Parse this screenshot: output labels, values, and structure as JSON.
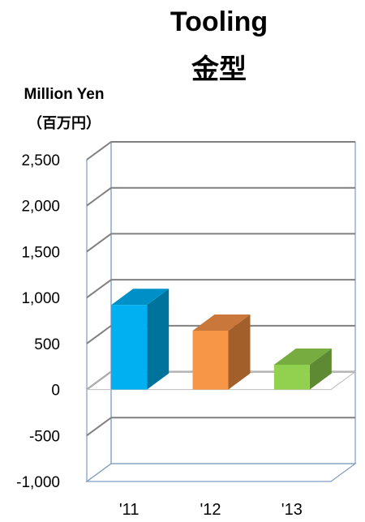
{
  "chart_data": {
    "type": "bar",
    "title": "Tooling",
    "subtitle": "金型",
    "ylabel": "Million Yen",
    "ylabel_sub": "（百万円）",
    "categories": [
      "'11",
      "'12",
      "'13"
    ],
    "values": [
      920,
      640,
      270
    ],
    "ylim": [
      -1000,
      2500
    ],
    "yticks": [
      -1000,
      -500,
      0,
      500,
      1000,
      1500,
      2000,
      2500
    ],
    "ytick_labels": [
      "-1,000",
      "-500",
      "0",
      "500",
      "1,000",
      "1,500",
      "2,000",
      "2,500"
    ],
    "grid": true,
    "legend": "none",
    "colors": {
      "front": [
        "#00B0F0",
        "#F79646",
        "#92D050"
      ],
      "side": [
        "#00739C",
        "#A35F2A",
        "#5E8A33"
      ],
      "top": [
        "#0090C8",
        "#C9773A",
        "#77AD40"
      ],
      "grid": "#808080",
      "frame": "#7F9CC0"
    }
  }
}
